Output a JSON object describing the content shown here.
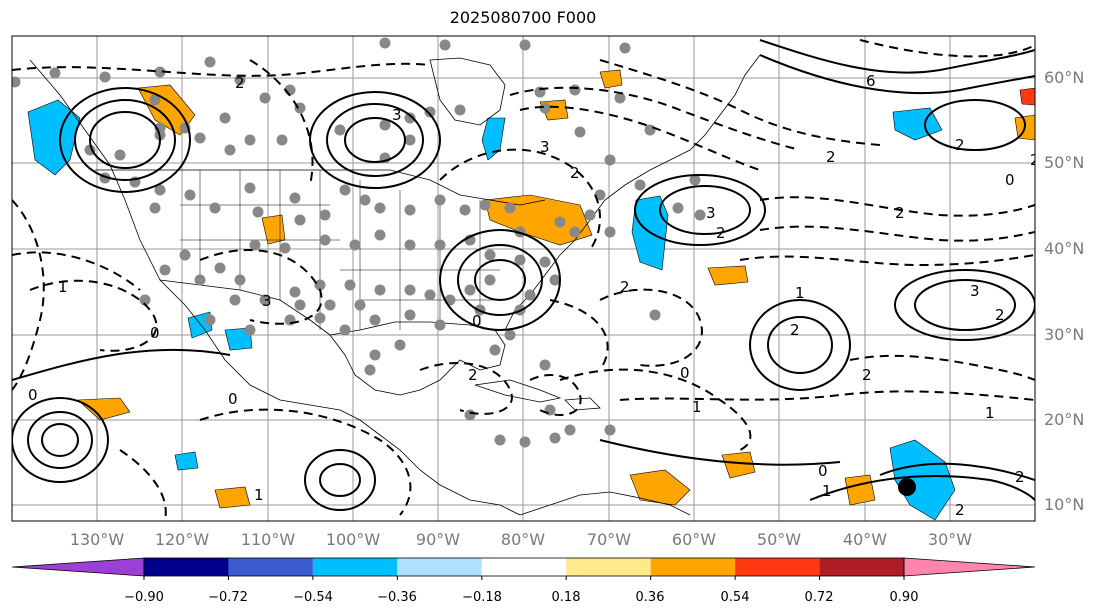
{
  "title": "2025080700 F000",
  "map": {
    "lat_labels": [
      "60°N",
      "50°N",
      "40°N",
      "30°N",
      "20°N",
      "10°N"
    ],
    "lon_labels": [
      "130°W",
      "120°W",
      "110°W",
      "100°W",
      "90°W",
      "80°W",
      "70°W",
      "60°W",
      "50°W",
      "40°W",
      "30°W"
    ],
    "extent": {
      "lon_min": -140,
      "lon_max": -20,
      "lat_min": 7,
      "lat_max": 63
    },
    "contour_labels": [
      "0",
      "1",
      "2",
      "3",
      "6"
    ],
    "observation_points": "gray circles over land and ocean",
    "storm_marker": {
      "lon": -35,
      "lat": 12
    }
  },
  "colorbar": {
    "ticks": [
      "−0.90",
      "−0.72",
      "−0.54",
      "−0.36",
      "−0.18",
      "0.18",
      "0.36",
      "0.54",
      "0.72",
      "0.90"
    ],
    "colors": [
      "#9b3fd6",
      "#00008b",
      "#3b5bd0",
      "#00bfff",
      "#b0e0ff",
      "#ffffff",
      "#ffe98a",
      "#ffa500",
      "#ff3a10",
      "#b01e25",
      "#ff85ad"
    ],
    "extend": "both"
  }
}
